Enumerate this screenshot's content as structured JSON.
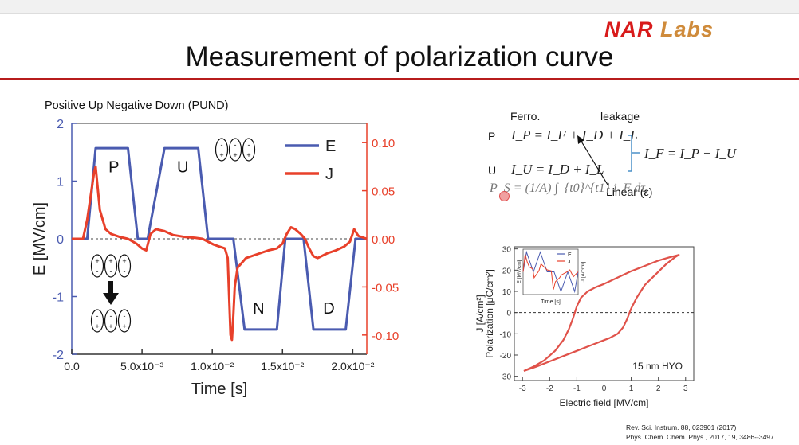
{
  "slide": {
    "logo_nar": "NAR",
    "logo_labs": "Labs",
    "title": "Measurement of polarization curve",
    "pund_label": "Positive Up Negative Down (PUND)",
    "references": [
      "Rev. Sci. Instrum. 88, 023901 (2017)",
      "Phys. Chem. Chem. Phys., 2017, 19, 3486--3497"
    ]
  },
  "equations": {
    "ferro_label": "Ferro.",
    "leakage_label": "leakage",
    "p_label": "P",
    "u_label": "U",
    "linear_label": "Linear (ε)",
    "eq_p": "I_P = I_F + I_D + I_L",
    "eq_u": "I_U = I_D + I_L",
    "eq_f": "I_F = I_P − I_U",
    "ps_formula": "P_S = (1/A) ∫_{t0}^{t1} i_F dτ,"
  },
  "colors": {
    "e_line": "#4a5bb0",
    "j_line": "#e8402a",
    "j_axis": "#e8402a",
    "accent_rule": "#b71c1c",
    "hysteresis": "#e0524a"
  },
  "chart_data": [
    {
      "type": "line",
      "title": "",
      "xlabel": "Time [s]",
      "ylabel": "E [MV/cm]",
      "y2label": "",
      "xlim": [
        0,
        0.021
      ],
      "ylim": [
        -2,
        2
      ],
      "y2lim": [
        -0.12,
        0.12
      ],
      "xticks": [
        0.0,
        0.005,
        0.01,
        0.015,
        0.02
      ],
      "xtick_labels": [
        "0.0",
        "5.0x10⁻³",
        "1.0x10⁻²",
        "1.5x10⁻²",
        "2.0x10⁻²"
      ],
      "yticks": [
        -2,
        -1,
        0,
        1,
        2
      ],
      "ytick_labels": [
        "-2",
        "-1",
        "0",
        "1",
        "2"
      ],
      "y2ticks": [
        0.1,
        0.05,
        0.0,
        -0.05,
        -0.1
      ],
      "y2tick_labels": [
        "0.10",
        "0.05",
        "0.00",
        "-0.05",
        "-0.10"
      ],
      "zero_line": "dashed",
      "legend": "top-right",
      "pulse_labels": [
        {
          "text": "P",
          "x": 0.003,
          "y": 1.25
        },
        {
          "text": "U",
          "x": 0.0079,
          "y": 1.25
        },
        {
          "text": "N",
          "x": 0.0133,
          "y": -1.2
        },
        {
          "text": "D",
          "x": 0.0183,
          "y": -1.2
        }
      ],
      "series": [
        {
          "name": "E",
          "axis": "left",
          "x": [
            0,
            0.0011,
            0.0017,
            0.004,
            0.0047,
            0.0054,
            0.0066,
            0.009,
            0.0097,
            0.0103,
            0.0115,
            0.0123,
            0.0146,
            0.0152,
            0.0165,
            0.0172,
            0.0195,
            0.0202,
            0.021
          ],
          "y": [
            0,
            0,
            1.57,
            1.57,
            0,
            0,
            1.57,
            1.57,
            0,
            0,
            0,
            -1.57,
            -1.57,
            0,
            0,
            -1.57,
            -1.57,
            0,
            0
          ]
        },
        {
          "name": "J",
          "axis": "right",
          "x": [
            0,
            0.0008,
            0.0011,
            0.0014,
            0.0016,
            0.0017,
            0.0018,
            0.002,
            0.0024,
            0.0028,
            0.0034,
            0.004,
            0.0046,
            0.005,
            0.0053,
            0.0056,
            0.006,
            0.0066,
            0.0072,
            0.008,
            0.0088,
            0.0093,
            0.0097,
            0.0101,
            0.0105,
            0.0109,
            0.0111,
            0.0112,
            0.0113,
            0.0114,
            0.0115,
            0.0116,
            0.0118,
            0.0121,
            0.0124,
            0.0128,
            0.0134,
            0.014,
            0.0146,
            0.015,
            0.0153,
            0.0156,
            0.0159,
            0.0163,
            0.0166,
            0.0169,
            0.0172,
            0.0175,
            0.0182,
            0.0188,
            0.0194,
            0.0198,
            0.0201,
            0.0204,
            0.021
          ],
          "y": [
            0.0,
            0.0,
            0.02,
            0.05,
            0.07,
            0.075,
            0.06,
            0.03,
            0.01,
            0.005,
            0.002,
            0.0,
            -0.005,
            -0.01,
            -0.012,
            0.005,
            0.01,
            0.008,
            0.004,
            0.002,
            0.001,
            0.0,
            -0.003,
            -0.006,
            -0.008,
            -0.01,
            -0.02,
            -0.06,
            -0.1,
            -0.105,
            -0.08,
            -0.05,
            -0.03,
            -0.025,
            -0.02,
            -0.018,
            -0.015,
            -0.012,
            -0.01,
            -0.005,
            0.005,
            0.012,
            0.01,
            0.005,
            0.0,
            -0.01,
            -0.018,
            -0.02,
            -0.015,
            -0.012,
            -0.008,
            -0.003,
            0.01,
            0.003,
            0.0
          ]
        }
      ]
    },
    {
      "type": "line",
      "title": "",
      "xlabel": "Electric field [MV/cm]",
      "ylabel": "Polarization [μC/cm²]",
      "ylabel2": "J [A/cm²]",
      "xlim": [
        -3.3,
        3.3
      ],
      "ylim": [
        -32,
        31
      ],
      "xticks": [
        -3,
        -2,
        -1,
        0,
        1,
        2,
        3
      ],
      "xtick_labels": [
        "-3",
        "-2",
        "-1",
        "0",
        "1",
        "2",
        "3"
      ],
      "yticks": [
        30,
        20,
        10,
        0,
        -10,
        -20,
        -30
      ],
      "ytick_labels": [
        "30",
        "20",
        "10",
        "0",
        "-10",
        "-20",
        "-30"
      ],
      "zero_lines": "dashed",
      "annotation": "15 nm HYO",
      "series": [
        {
          "name": "",
          "x": [
            -2.95,
            -2.6,
            -2.2,
            -1.8,
            -1.5,
            -1.3,
            -1.15,
            -1.0,
            -0.85,
            -0.6,
            -0.3,
            0.0,
            0.5,
            1.0,
            1.5,
            2.0,
            2.4,
            2.7,
            2.75,
            2.6,
            2.3,
            1.9,
            1.5,
            1.2,
            1.0,
            0.85,
            0.7,
            0.5,
            0.2,
            0.0,
            -0.5,
            -1.0,
            -1.5,
            -2.0,
            -2.5,
            -2.95
          ],
          "y": [
            -27.5,
            -25.5,
            -22.5,
            -18,
            -13,
            -8,
            -3,
            3,
            7,
            10,
            12,
            13.5,
            16.5,
            19.5,
            22,
            24.5,
            26,
            27,
            27.2,
            26,
            23,
            18,
            13,
            7,
            2,
            -3,
            -7,
            -10,
            -12,
            -13,
            -15.5,
            -18,
            -20.5,
            -23,
            -25.5,
            -27.5
          ]
        }
      ],
      "inset": {
        "xlabel": "Time [s]",
        "ylabel": "E [MV/cm]",
        "y2label": "J [A/cm²]",
        "legend": [
          "E",
          "J"
        ],
        "e_x": [
          0,
          0.5,
          1.5,
          2.5,
          3.5,
          4.5,
          5.5,
          6.5,
          7.5,
          8
        ],
        "e_y": [
          0,
          1,
          0,
          1,
          0,
          0,
          -1,
          0,
          -1,
          0
        ],
        "j_x": [
          0,
          0.3,
          0.6,
          0.9,
          1.4,
          1.6,
          2.3,
          2.6,
          3.5,
          4.1,
          4.4,
          4.7,
          5.3,
          5.6,
          6.4,
          6.8,
          7.3,
          8
        ],
        "j_y": [
          0,
          0.9,
          0.5,
          0.25,
          0.15,
          -0.3,
          0.05,
          0.4,
          0.1,
          0.05,
          -0.9,
          -0.5,
          -0.3,
          -0.15,
          0.0,
          0.1,
          -0.25,
          0
        ]
      }
    }
  ]
}
